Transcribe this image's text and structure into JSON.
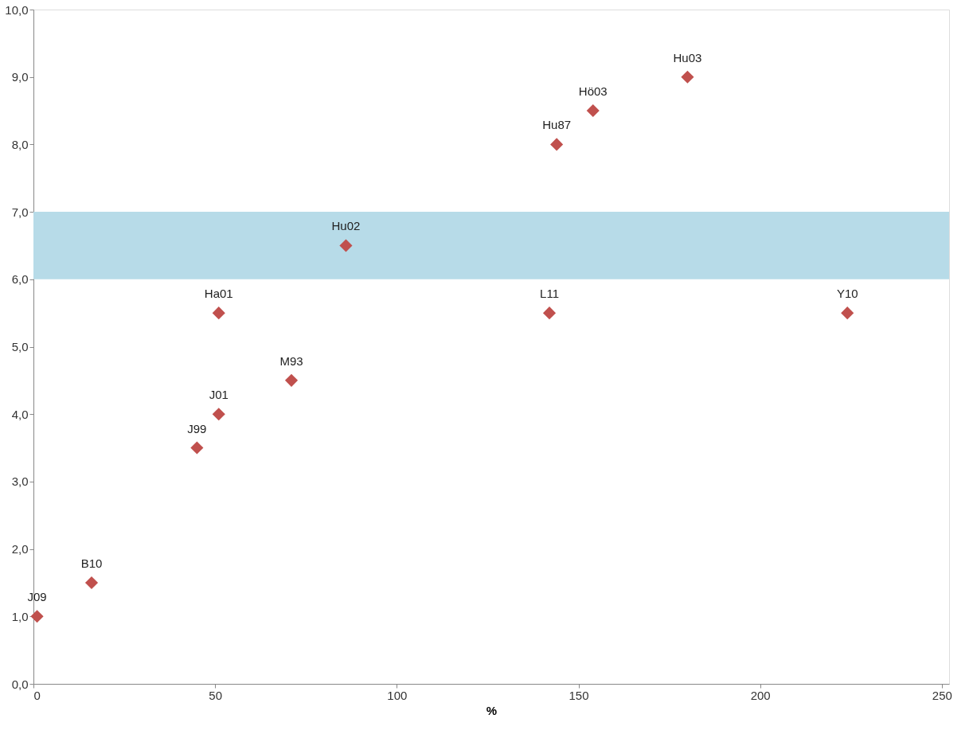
{
  "chart_data": {
    "type": "scatter",
    "xlabel": "%",
    "x": [
      1,
      16,
      45,
      51,
      51,
      71,
      86,
      142,
      144,
      154,
      180,
      224
    ],
    "series": [
      {
        "color": "#c0504d",
        "values": [
          1.0,
          1.5,
          3.5,
          4.0,
          5.5,
          4.5,
          6.5,
          5.5,
          8.0,
          8.5,
          9.0,
          5.5
        ]
      }
    ],
    "marker": "diamond",
    "xlim": [
      0,
      252
    ],
    "xticks": [
      0,
      50,
      100,
      150,
      200,
      250
    ],
    "ylim": [
      0,
      10
    ],
    "yticks": [
      {
        "value": 0,
        "label": "0,0"
      },
      {
        "value": 1,
        "label": "1,0"
      },
      {
        "value": 2,
        "label": "2,0"
      },
      {
        "value": 3,
        "label": "3,0"
      },
      {
        "value": 4,
        "label": "4,0"
      },
      {
        "value": 5,
        "label": "5,0"
      },
      {
        "value": 6,
        "label": "6,0"
      },
      {
        "value": 7,
        "label": "7,0"
      },
      {
        "value": 8,
        "label": "8,0"
      },
      {
        "value": 9,
        "label": "9,0"
      },
      {
        "value": 10,
        "label": "10,0"
      }
    ],
    "grid": false,
    "legend": false,
    "bands": [
      {
        "axis": "y",
        "from": 6,
        "to": 7,
        "color": "#b7dbe8"
      }
    ],
    "annotations": [
      {
        "text": "J09",
        "x": 1,
        "y": 1.0
      },
      {
        "text": "B10",
        "x": 16,
        "y": 1.5
      },
      {
        "text": "J99",
        "x": 45,
        "y": 3.5
      },
      {
        "text": "J01",
        "x": 51,
        "y": 4.0
      },
      {
        "text": "Ha01",
        "x": 51,
        "y": 5.5
      },
      {
        "text": "M93",
        "x": 71,
        "y": 4.5
      },
      {
        "text": "Hu02",
        "x": 86,
        "y": 6.5
      },
      {
        "text": "L11",
        "x": 142,
        "y": 5.5
      },
      {
        "text": "Hu87",
        "x": 144,
        "y": 8.0
      },
      {
        "text": "Hö03",
        "x": 154,
        "y": 8.5
      },
      {
        "text": "Hu03",
        "x": 180,
        "y": 9.0
      },
      {
        "text": "Y10",
        "x": 224,
        "y": 5.5
      }
    ]
  }
}
